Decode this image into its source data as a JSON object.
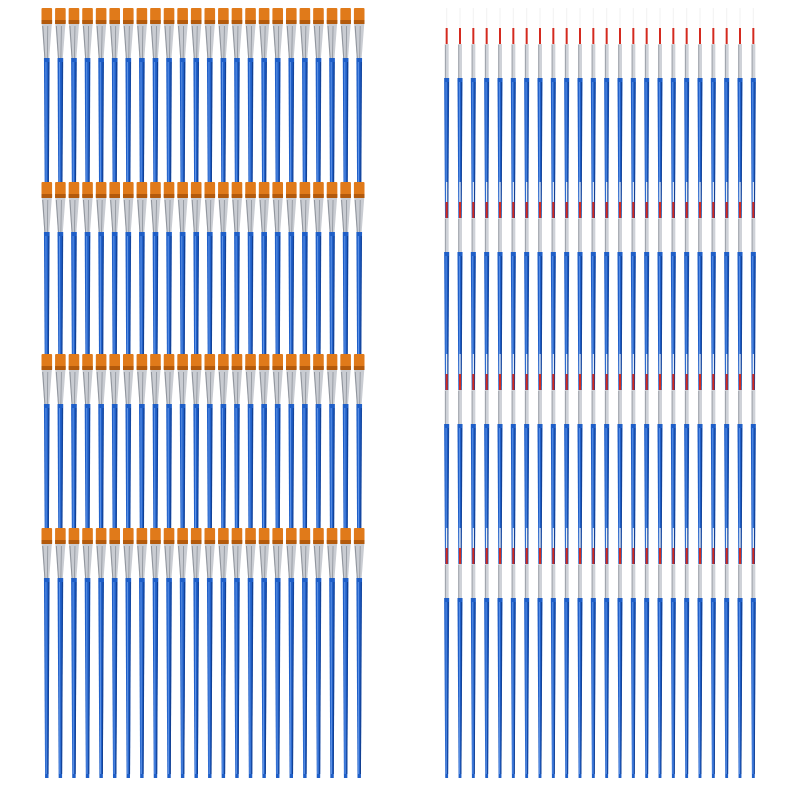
{
  "photo": {
    "subject": "paint-brush-set",
    "background_color": "#ffffff",
    "groups": [
      {
        "id": "flat-brushes",
        "tip_style": "flat",
        "rows": 4,
        "brushes_per_row": 24,
        "colors": {
          "handle": "#1f5fc8",
          "handle_shade": "#123f91",
          "handle_highlight": "#5f93e6",
          "ferrule": "#c9ccd2",
          "ferrule_shade": "#8e939b",
          "bristle": "#e07a1a",
          "bristle_shade": "#b35a0c"
        }
      },
      {
        "id": "liner-brushes",
        "tip_style": "pointed",
        "rows": 4,
        "brushes_per_row": 24,
        "colors": {
          "handle": "#1f5fc8",
          "handle_shade": "#123f91",
          "handle_highlight": "#5f93e6",
          "ferrule": "#cfd2d8",
          "ferrule_shade": "#8e939b",
          "bristle": "#d42a1f",
          "bristle_shade": "#f3f3f3"
        }
      }
    ]
  }
}
